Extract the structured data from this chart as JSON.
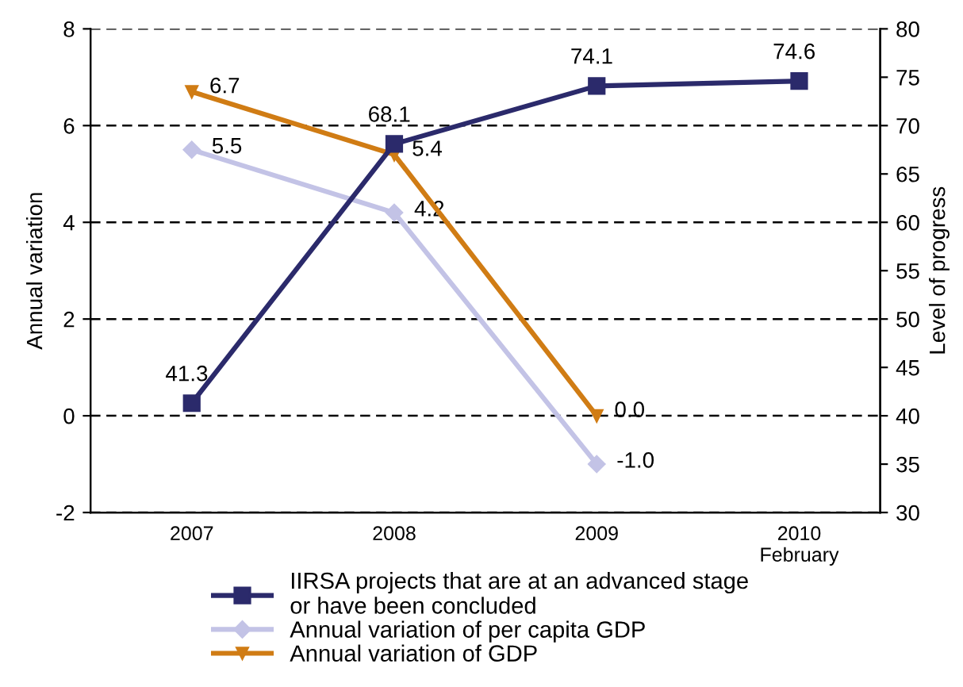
{
  "chart_data": {
    "type": "line",
    "categories": [
      "2007",
      "2008",
      "2009",
      "2010\nFebruary"
    ],
    "ylabel": "Annual variation",
    "y2label": "Level of progress",
    "ylim": [
      -2,
      8
    ],
    "yticks": [
      -2,
      0,
      2,
      4,
      6,
      8
    ],
    "y2lim": [
      30,
      80
    ],
    "y2ticks": [
      30,
      35,
      40,
      45,
      50,
      55,
      60,
      65,
      70,
      75,
      80
    ],
    "grid": "y",
    "legend": "bottom",
    "line_style": "solid",
    "series": [
      {
        "name": "IIRSA projects that are at an advanced stage\nor have been concluded",
        "color": "#2b2a6b",
        "axis": "y2",
        "marker": "square",
        "values": [
          41.3,
          68.1,
          74.1,
          74.6
        ],
        "value_labels": [
          "41.3",
          "68.1",
          "74.1",
          "74.6"
        ]
      },
      {
        "name": "Annual variation of per capita GDP",
        "color": "#c3c3e6",
        "marker": "diamond",
        "values": [
          5.5,
          4.2,
          -1.0,
          null
        ],
        "value_labels": [
          "5.5",
          "4.2",
          "-1.0",
          null
        ]
      },
      {
        "name": "Annual variation of GDP",
        "color": "#d07c14",
        "marker": "triangle",
        "values": [
          6.7,
          5.4,
          0.0,
          null
        ],
        "value_labels": [
          "6.7",
          "5.4",
          "0.0",
          null
        ]
      }
    ]
  }
}
